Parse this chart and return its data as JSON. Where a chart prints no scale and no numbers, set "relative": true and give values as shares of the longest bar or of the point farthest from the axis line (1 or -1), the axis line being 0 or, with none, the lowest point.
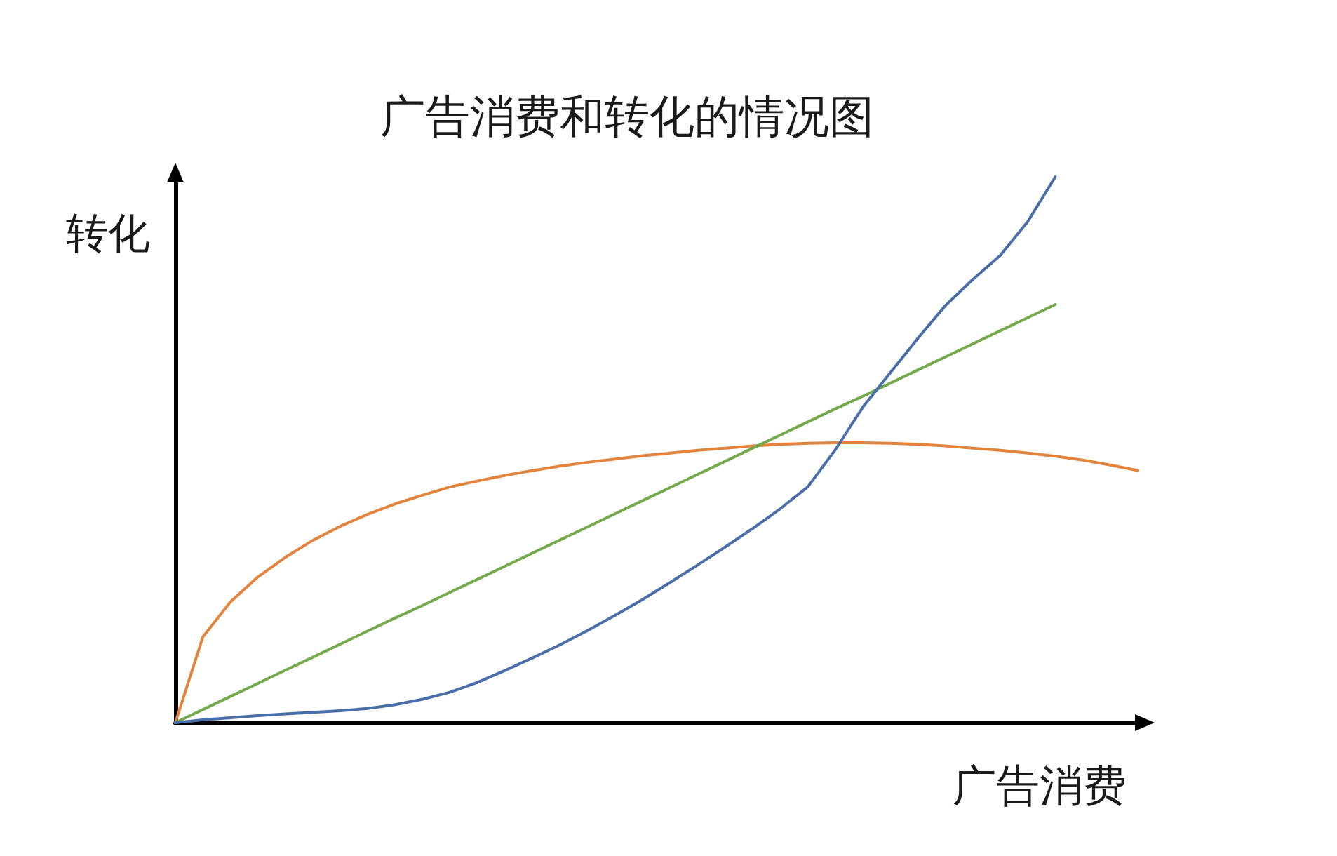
{
  "chart_data": {
    "type": "line",
    "title": "广告消费和转化的情况图",
    "xlabel": "广告消费",
    "ylabel": "转化",
    "relative": true,
    "marker": "none",
    "line_style": "solid",
    "categories": [
      null,
      null,
      null,
      null,
      null,
      null,
      null,
      null,
      null,
      null,
      null,
      null,
      null,
      null,
      null,
      null,
      null,
      null,
      null,
      null,
      null,
      null,
      null,
      null,
      null,
      null,
      null,
      null,
      null,
      null,
      null,
      null,
      null,
      null,
      null,
      null
    ],
    "series": [
      {
        "color": "#e2843e",
        "values": [
          0,
          0.157,
          0.221,
          0.267,
          0.303,
          0.334,
          0.36,
          0.382,
          0.401,
          0.417,
          0.432,
          0.443,
          0.453,
          0.462,
          0.47,
          0.477,
          0.483,
          0.489,
          0.494,
          0.499,
          0.503,
          0.507,
          0.51,
          0.512,
          0.513,
          0.513,
          0.512,
          0.51,
          0.507,
          0.503,
          0.499,
          0.494,
          0.488,
          0.481,
          0.472,
          0.462
        ]
      },
      {
        "color": "#74a94c",
        "values": [
          0,
          0.024,
          0.048,
          0.072,
          0.096,
          0.12,
          0.144,
          0.168,
          0.192,
          0.215,
          0.239,
          0.263,
          0.287,
          0.311,
          0.335,
          0.359,
          0.383,
          0.407,
          0.431,
          0.455,
          0.479,
          0.503,
          0.527,
          0.551,
          0.575,
          0.598,
          0.622,
          0.646,
          0.67,
          0.694,
          0.718,
          0.742,
          0.766,
          null,
          null,
          null
        ]
      },
      {
        "color": "#4a6ea8",
        "values": [
          0,
          0.005,
          0.009,
          0.013,
          0.016,
          0.019,
          0.022,
          0.026,
          0.033,
          0.043,
          0.056,
          0.074,
          0.096,
          0.119,
          0.143,
          0.169,
          0.197,
          0.226,
          0.257,
          0.289,
          0.322,
          0.356,
          0.392,
          0.432,
          0.5,
          0.578,
          0.641,
          0.704,
          0.764,
          0.812,
          0.856,
          0.918,
          1,
          null,
          null,
          null
        ]
      }
    ]
  }
}
